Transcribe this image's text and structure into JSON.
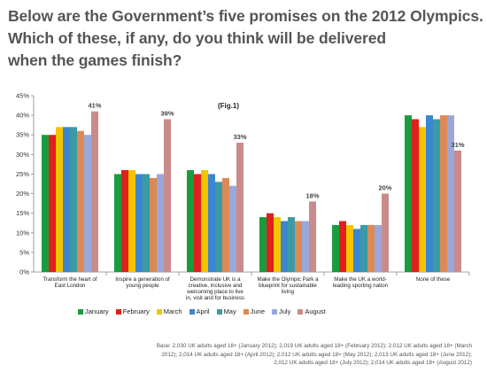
{
  "title_lines": [
    "Below are the Government’s five promises on the 2012 Olympics.",
    "Which of these, if any, do you think will be delivered",
    "when the games finish?"
  ],
  "fig_label": "(Fig.1)",
  "base_note": [
    "Base: 2,030 UK adults aged 18+ (January 2012); 2,019 UK adults aged 18+ (February 2012); 2,012 UK adults aged 18+ (March",
    "2012); 2,014 UK adults aged 18+ (April 2012); 2,012 UK adults aged 18+ (May 2012); 2,013 UK adults aged 18+ (June 2012);",
    "2,012 UK adults aged 18+ (July 2012); 2,014 UK adults aged 18+ (August 2012)"
  ],
  "chart_data": {
    "type": "bar",
    "title": "",
    "xlabel": "",
    "ylabel": "",
    "ylim": [
      0,
      45
    ],
    "y_ticks": [
      "0%",
      "5%",
      "10%",
      "15%",
      "20%",
      "25%",
      "30%",
      "35%",
      "40%",
      "45%"
    ],
    "grid": false,
    "legend_position": "bottom",
    "categories": [
      [
        "Transform the heart of",
        "East London"
      ],
      [
        "Inspire a generation of",
        "young people"
      ],
      [
        "Demonstrate UK is a",
        "creative, inclusive and",
        "welcoming place to live",
        "in, visit and for business"
      ],
      [
        "Make the Olympic Park a",
        "blueprint for sustainable",
        "living"
      ],
      [
        "Make the UK a world-",
        "leading sporting nation"
      ],
      [
        "None of these"
      ]
    ],
    "series": [
      {
        "name": "January",
        "color": "#1a9c3e",
        "values": [
          35,
          25,
          26,
          14,
          12,
          40
        ]
      },
      {
        "name": "February",
        "color": "#e0201b",
        "values": [
          35,
          26,
          25,
          15,
          13,
          39
        ]
      },
      {
        "name": "March",
        "color": "#f5c400",
        "values": [
          37,
          26,
          26,
          14,
          12,
          37
        ]
      },
      {
        "name": "April",
        "color": "#3a86d0",
        "values": [
          37,
          25,
          25,
          13,
          11,
          40
        ]
      },
      {
        "name": "May",
        "color": "#3c9aa4",
        "values": [
          37,
          25,
          23,
          14,
          12,
          39
        ]
      },
      {
        "name": "June",
        "color": "#dc8a55",
        "values": [
          36,
          24,
          24,
          13,
          12,
          40
        ]
      },
      {
        "name": "July",
        "color": "#99a8d8",
        "values": [
          35,
          25,
          22,
          13,
          12,
          40
        ]
      },
      {
        "name": "August",
        "color": "#c98b8b",
        "values": [
          41,
          39,
          33,
          18,
          20,
          31
        ]
      }
    ],
    "data_labels": [
      "41%",
      "39%",
      "33%",
      "18%",
      "20%",
      "31%"
    ]
  }
}
